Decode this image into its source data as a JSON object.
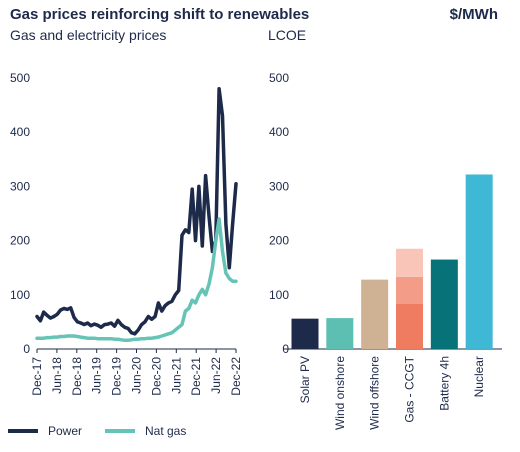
{
  "header": {
    "title": "Gas prices reinforcing shift to renewables",
    "unit": "$/MWh"
  },
  "chart_data": [
    {
      "type": "line",
      "title": "Gas and electricity prices",
      "ylim": [
        0,
        500
      ],
      "yticks": [
        0,
        100,
        200,
        300,
        400,
        500
      ],
      "x_tick_labels": [
        "Dec-17",
        "Jun-18",
        "Dec-18",
        "Jun-19",
        "Dec-19",
        "Jun-20",
        "Dec-20",
        "Jun-21",
        "Dec-21",
        "Jun-22",
        "Dec-22"
      ],
      "x_start": "2017-12",
      "x_end": "2022-12",
      "series": [
        {
          "name": "Power",
          "color": "#1d2a4a",
          "values": [
            60,
            52,
            68,
            62,
            57,
            60,
            64,
            72,
            75,
            73,
            76,
            58,
            50,
            48,
            45,
            48,
            43,
            46,
            44,
            40,
            45,
            46,
            48,
            42,
            53,
            45,
            40,
            38,
            30,
            28,
            35,
            45,
            50,
            60,
            55,
            60,
            85,
            70,
            80,
            85,
            88,
            100,
            108,
            210,
            220,
            215,
            295,
            200,
            300,
            190,
            320,
            245,
            180,
            200,
            480,
            430,
            230,
            150,
            230,
            305
          ]
        },
        {
          "name": "Nat gas",
          "color": "#66c4b6",
          "values": [
            20,
            20,
            20,
            21,
            21,
            22,
            22,
            23,
            23,
            24,
            24,
            24,
            23,
            22,
            21,
            20,
            20,
            20,
            19,
            19,
            19,
            19,
            19,
            18,
            18,
            17,
            16,
            16,
            17,
            18,
            18,
            19,
            19,
            20,
            20,
            21,
            22,
            24,
            26,
            28,
            30,
            35,
            40,
            45,
            70,
            75,
            90,
            85,
            100,
            110,
            100,
            120,
            150,
            200,
            240,
            180,
            140,
            130,
            125,
            125
          ]
        }
      ],
      "legend": [
        "Power",
        "Nat gas"
      ],
      "grid": false
    },
    {
      "type": "bar",
      "title": "LCOE",
      "ylim": [
        0,
        500
      ],
      "yticks": [
        0,
        100,
        200,
        300,
        400,
        500
      ],
      "categories": [
        "Solar PV",
        "Wind onshore",
        "Wind offshore",
        "Gas - CCGT",
        "Battery 4h",
        "Nuclear"
      ],
      "values": [
        56,
        57,
        128,
        185,
        165,
        322
      ],
      "colors": [
        "#1d2a4a",
        "#5cbfb1",
        "#cfb294",
        "#ef7b60",
        "#077278",
        "#3fb8d6"
      ],
      "stacked": {
        "category": "Gas - CCGT",
        "segments": [
          {
            "value": 83,
            "color": "#ef7b60"
          },
          {
            "value": 50,
            "color": "#f39c88"
          },
          {
            "value": 52,
            "color": "#f8c5b8"
          }
        ]
      }
    }
  ]
}
